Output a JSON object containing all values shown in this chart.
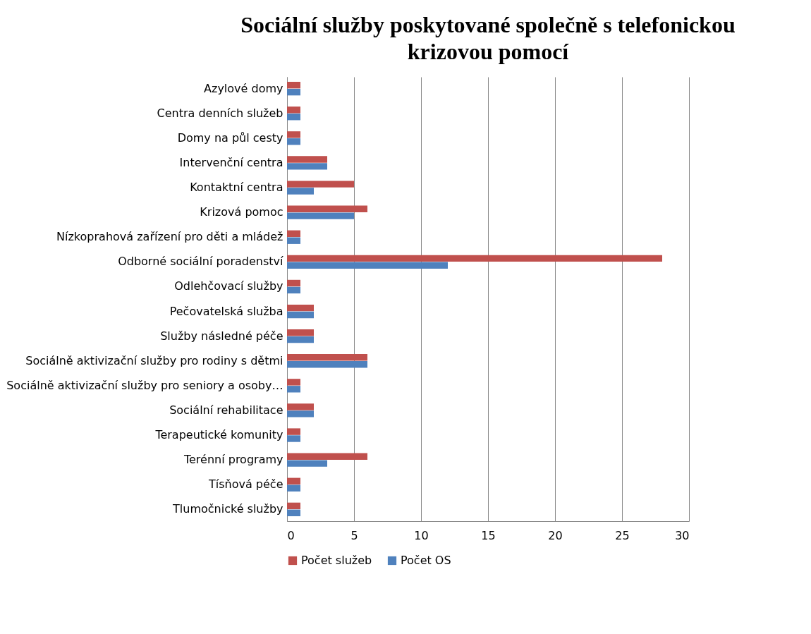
{
  "chart_data": {
    "type": "bar",
    "orientation": "horizontal",
    "title": "Sociální služby poskytované společně s telefonickou krizovou pomocí",
    "categories": [
      "Azylové domy",
      "Centra denních služeb",
      "Domy na půl cesty",
      "Intervenční centra",
      "Kontaktní centra",
      "Krizová pomoc",
      "Nízkoprahová zařízení pro děti a mládež",
      "Odborné sociální poradenství",
      "Odlehčovací služby",
      "Pečovatelská služba",
      "Služby následné péče",
      "Sociálně aktivizační služby pro rodiny s dětmi",
      "Sociálně aktivizační služby pro seniory a osoby…",
      "Sociální rehabilitace",
      "Terapeutické komunity",
      "Terénní programy",
      "Tísňová péče",
      "Tlumočnické služby"
    ],
    "series": [
      {
        "name": "Počet služeb",
        "color": "#c0504d",
        "values": [
          1,
          1,
          1,
          3,
          5,
          6,
          1,
          28,
          1,
          2,
          2,
          6,
          1,
          2,
          1,
          6,
          1,
          1
        ]
      },
      {
        "name": "Počet OS",
        "color": "#4f81bd",
        "values": [
          1,
          1,
          1,
          3,
          2,
          5,
          1,
          12,
          1,
          2,
          2,
          6,
          1,
          2,
          1,
          3,
          1,
          1
        ]
      }
    ],
    "xlim": [
      0,
      30
    ],
    "xticks": [
      0,
      5,
      10,
      15,
      20,
      25,
      30
    ],
    "grid": "x",
    "legend": "bottom"
  }
}
